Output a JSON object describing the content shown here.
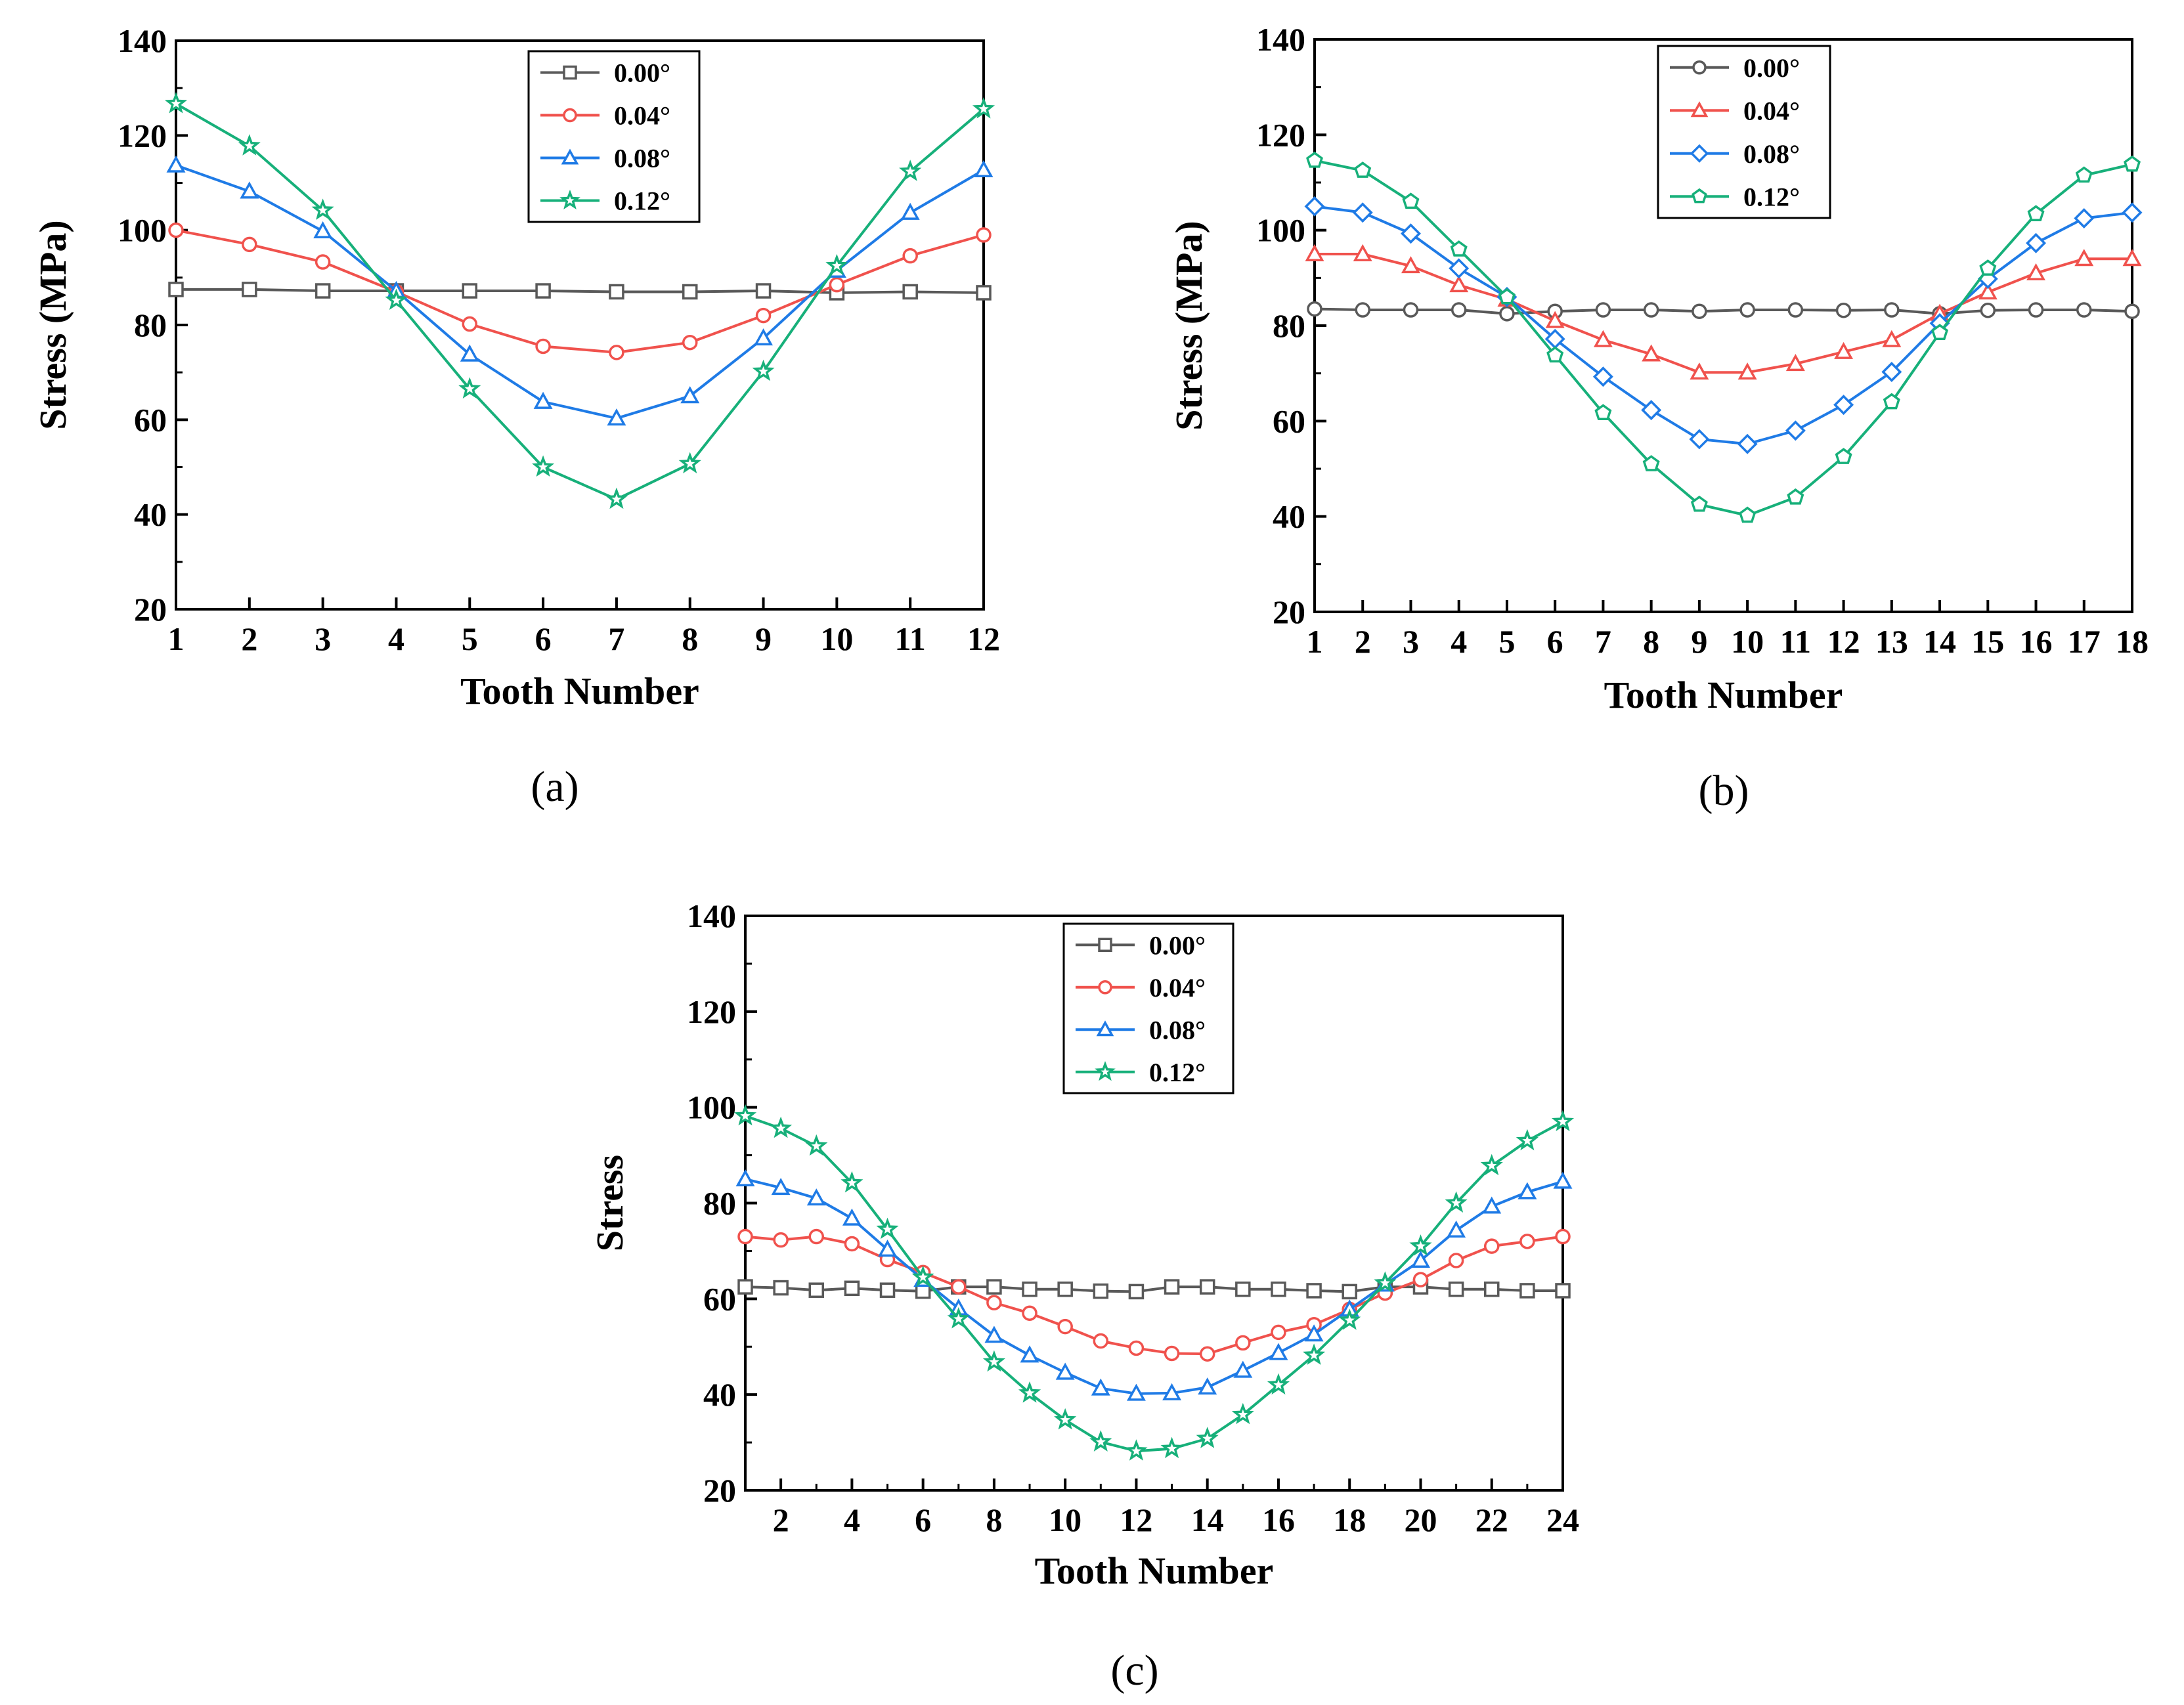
{
  "colors": {
    "s000": "#595959",
    "s004": "#f0524d",
    "s008": "#1f7be6",
    "s012": "#17b07a",
    "axis": "#000000"
  },
  "chart_data": [
    {
      "caption": "(a)",
      "type": "line",
      "xlabel": "Tooth Number",
      "ylabel": "Stress (MPa)",
      "xlim": [
        1,
        12
      ],
      "xticks": [
        1,
        2,
        3,
        4,
        5,
        6,
        7,
        8,
        9,
        10,
        11,
        12
      ],
      "ylim": [
        20,
        140
      ],
      "yticks": [
        20,
        40,
        60,
        80,
        100,
        120,
        140
      ],
      "legend_position": "top-center",
      "series": [
        {
          "name": "0.00°",
          "marker": "square",
          "color": "#595959",
          "x": [
            1,
            2,
            3,
            4,
            5,
            6,
            7,
            8,
            9,
            10,
            11,
            12
          ],
          "y": [
            87.5,
            87.5,
            87.2,
            87.2,
            87.2,
            87.2,
            87.0,
            87.0,
            87.2,
            86.8,
            87.0,
            86.8
          ]
        },
        {
          "name": "0.04°",
          "marker": "circle",
          "color": "#f0524d",
          "x": [
            1,
            2,
            3,
            4,
            5,
            6,
            7,
            8,
            9,
            10,
            11,
            12
          ],
          "y": [
            100,
            97,
            93.3,
            87,
            80.2,
            75.5,
            74.2,
            76.3,
            82,
            88.5,
            94.6,
            99
          ]
        },
        {
          "name": "0.08°",
          "marker": "triangle",
          "color": "#1f7be6",
          "x": [
            1,
            2,
            3,
            4,
            5,
            6,
            7,
            8,
            9,
            10,
            11,
            12
          ],
          "y": [
            113.7,
            108.2,
            99.8,
            87.2,
            73.8,
            63.8,
            60.3,
            65,
            77.2,
            91.5,
            103.7,
            112.7
          ]
        },
        {
          "name": "0.12°",
          "marker": "star",
          "color": "#17b07a",
          "x": [
            1,
            2,
            3,
            4,
            5,
            6,
            7,
            8,
            9,
            10,
            11,
            12
          ],
          "y": [
            126.7,
            117.8,
            104.2,
            85.2,
            66.5,
            50,
            43.2,
            50.7,
            70.2,
            92.5,
            112.4,
            125.6
          ]
        }
      ]
    },
    {
      "caption": "(b)",
      "type": "line",
      "xlabel": "Tooth Number",
      "ylabel": "Stress (MPa)",
      "xlim": [
        1,
        18
      ],
      "xticks": [
        1,
        2,
        3,
        4,
        5,
        6,
        7,
        8,
        9,
        10,
        11,
        12,
        13,
        14,
        15,
        16,
        17,
        18
      ],
      "ylim": [
        20,
        140
      ],
      "yticks": [
        20,
        40,
        60,
        80,
        100,
        120,
        140
      ],
      "legend_position": "top-center",
      "series": [
        {
          "name": "0.00°",
          "marker": "circle",
          "color": "#595959",
          "x": [
            1,
            2,
            3,
            4,
            5,
            6,
            7,
            8,
            9,
            10,
            11,
            12,
            13,
            14,
            15,
            16,
            17,
            18
          ],
          "y": [
            83.5,
            83.3,
            83.3,
            83.3,
            82.5,
            83,
            83.3,
            83.3,
            83,
            83.3,
            83.3,
            83.2,
            83.3,
            82.5,
            83.2,
            83.3,
            83.3,
            83
          ]
        },
        {
          "name": "0.04°",
          "marker": "triangle",
          "color": "#f0524d",
          "x": [
            1,
            2,
            3,
            4,
            5,
            6,
            7,
            8,
            9,
            10,
            11,
            12,
            13,
            14,
            15,
            16,
            17,
            18
          ],
          "y": [
            95,
            95,
            92.5,
            88.5,
            85.5,
            81,
            77,
            74,
            70.2,
            70.2,
            72,
            74.5,
            77,
            82.5,
            87,
            91,
            94,
            94
          ]
        },
        {
          "name": "0.08°",
          "marker": "diamond",
          "color": "#1f7be6",
          "x": [
            1,
            2,
            3,
            4,
            5,
            6,
            7,
            8,
            9,
            10,
            11,
            12,
            13,
            14,
            15,
            16,
            17,
            18
          ],
          "y": [
            105,
            103.7,
            99.3,
            92,
            86,
            77.2,
            69.3,
            62.3,
            56.2,
            55.2,
            58,
            63.4,
            70.3,
            80.5,
            89.8,
            97.3,
            102.5,
            103.7
          ]
        },
        {
          "name": "0.12°",
          "marker": "pentagon",
          "color": "#17b07a",
          "x": [
            1,
            2,
            3,
            4,
            5,
            6,
            7,
            8,
            9,
            10,
            11,
            12,
            13,
            14,
            15,
            16,
            17,
            18
          ],
          "y": [
            114.6,
            112.5,
            106,
            96,
            86,
            73.8,
            61.7,
            51,
            42.5,
            40.2,
            44,
            52.5,
            64,
            78.5,
            92,
            103.4,
            111.5,
            113.8
          ]
        }
      ]
    },
    {
      "caption": "(c)",
      "type": "line",
      "xlabel": "Tooth Number",
      "ylabel": "Stress",
      "xlim": [
        1,
        24
      ],
      "xticks": [
        2,
        4,
        6,
        8,
        10,
        12,
        14,
        16,
        18,
        20,
        22,
        24
      ],
      "ylim": [
        20,
        140
      ],
      "yticks": [
        20,
        40,
        60,
        80,
        100,
        120,
        140
      ],
      "legend_position": "top-center",
      "series": [
        {
          "name": "0.00°",
          "marker": "square",
          "color": "#595959",
          "x": [
            1,
            2,
            3,
            4,
            5,
            6,
            7,
            8,
            9,
            10,
            11,
            12,
            13,
            14,
            15,
            16,
            17,
            18,
            19,
            20,
            21,
            22,
            23,
            24
          ],
          "y": [
            62.5,
            62.3,
            61.8,
            62.2,
            61.8,
            61.6,
            62.5,
            62.5,
            62,
            62,
            61.6,
            61.5,
            62.5,
            62.5,
            62,
            62,
            61.7,
            61.5,
            62.5,
            62.5,
            62,
            62,
            61.7,
            61.7
          ]
        },
        {
          "name": "0.04°",
          "marker": "circle",
          "color": "#f0524d",
          "x": [
            1,
            2,
            3,
            4,
            5,
            6,
            7,
            8,
            9,
            10,
            11,
            12,
            13,
            14,
            15,
            16,
            17,
            18,
            19,
            20,
            21,
            22,
            23,
            24
          ],
          "y": [
            73,
            72.3,
            73,
            71.5,
            68.2,
            65.5,
            62.5,
            59.2,
            57,
            54.2,
            51.2,
            49.7,
            48.6,
            48.5,
            50.8,
            53,
            54.6,
            57.8,
            61.2,
            64,
            68,
            71,
            72,
            73
          ]
        },
        {
          "name": "0.08°",
          "marker": "triangle",
          "color": "#1f7be6",
          "x": [
            1,
            2,
            3,
            4,
            5,
            6,
            7,
            8,
            9,
            10,
            11,
            12,
            13,
            14,
            15,
            16,
            17,
            18,
            19,
            20,
            21,
            22,
            23,
            24
          ],
          "y": [
            85,
            83.2,
            81,
            76.8,
            70.3,
            64,
            58,
            52.3,
            48.2,
            44.6,
            41.3,
            40.2,
            40.3,
            41.5,
            45,
            48.7,
            52.6,
            57.8,
            63,
            68,
            74.3,
            79.3,
            82.3,
            84.5
          ]
        },
        {
          "name": "0.12°",
          "marker": "star",
          "color": "#17b07a",
          "x": [
            1,
            2,
            3,
            4,
            5,
            6,
            7,
            8,
            9,
            10,
            11,
            12,
            13,
            14,
            15,
            16,
            17,
            18,
            19,
            20,
            21,
            22,
            23,
            24
          ],
          "y": [
            98.2,
            95.6,
            91.9,
            84.2,
            74.5,
            64.5,
            55.8,
            46.8,
            40.3,
            34.7,
            30.1,
            28.2,
            28.7,
            30.8,
            35.8,
            42,
            48.2,
            55.5,
            63.3,
            71,
            80,
            87.8,
            93,
            97
          ]
        }
      ]
    }
  ]
}
